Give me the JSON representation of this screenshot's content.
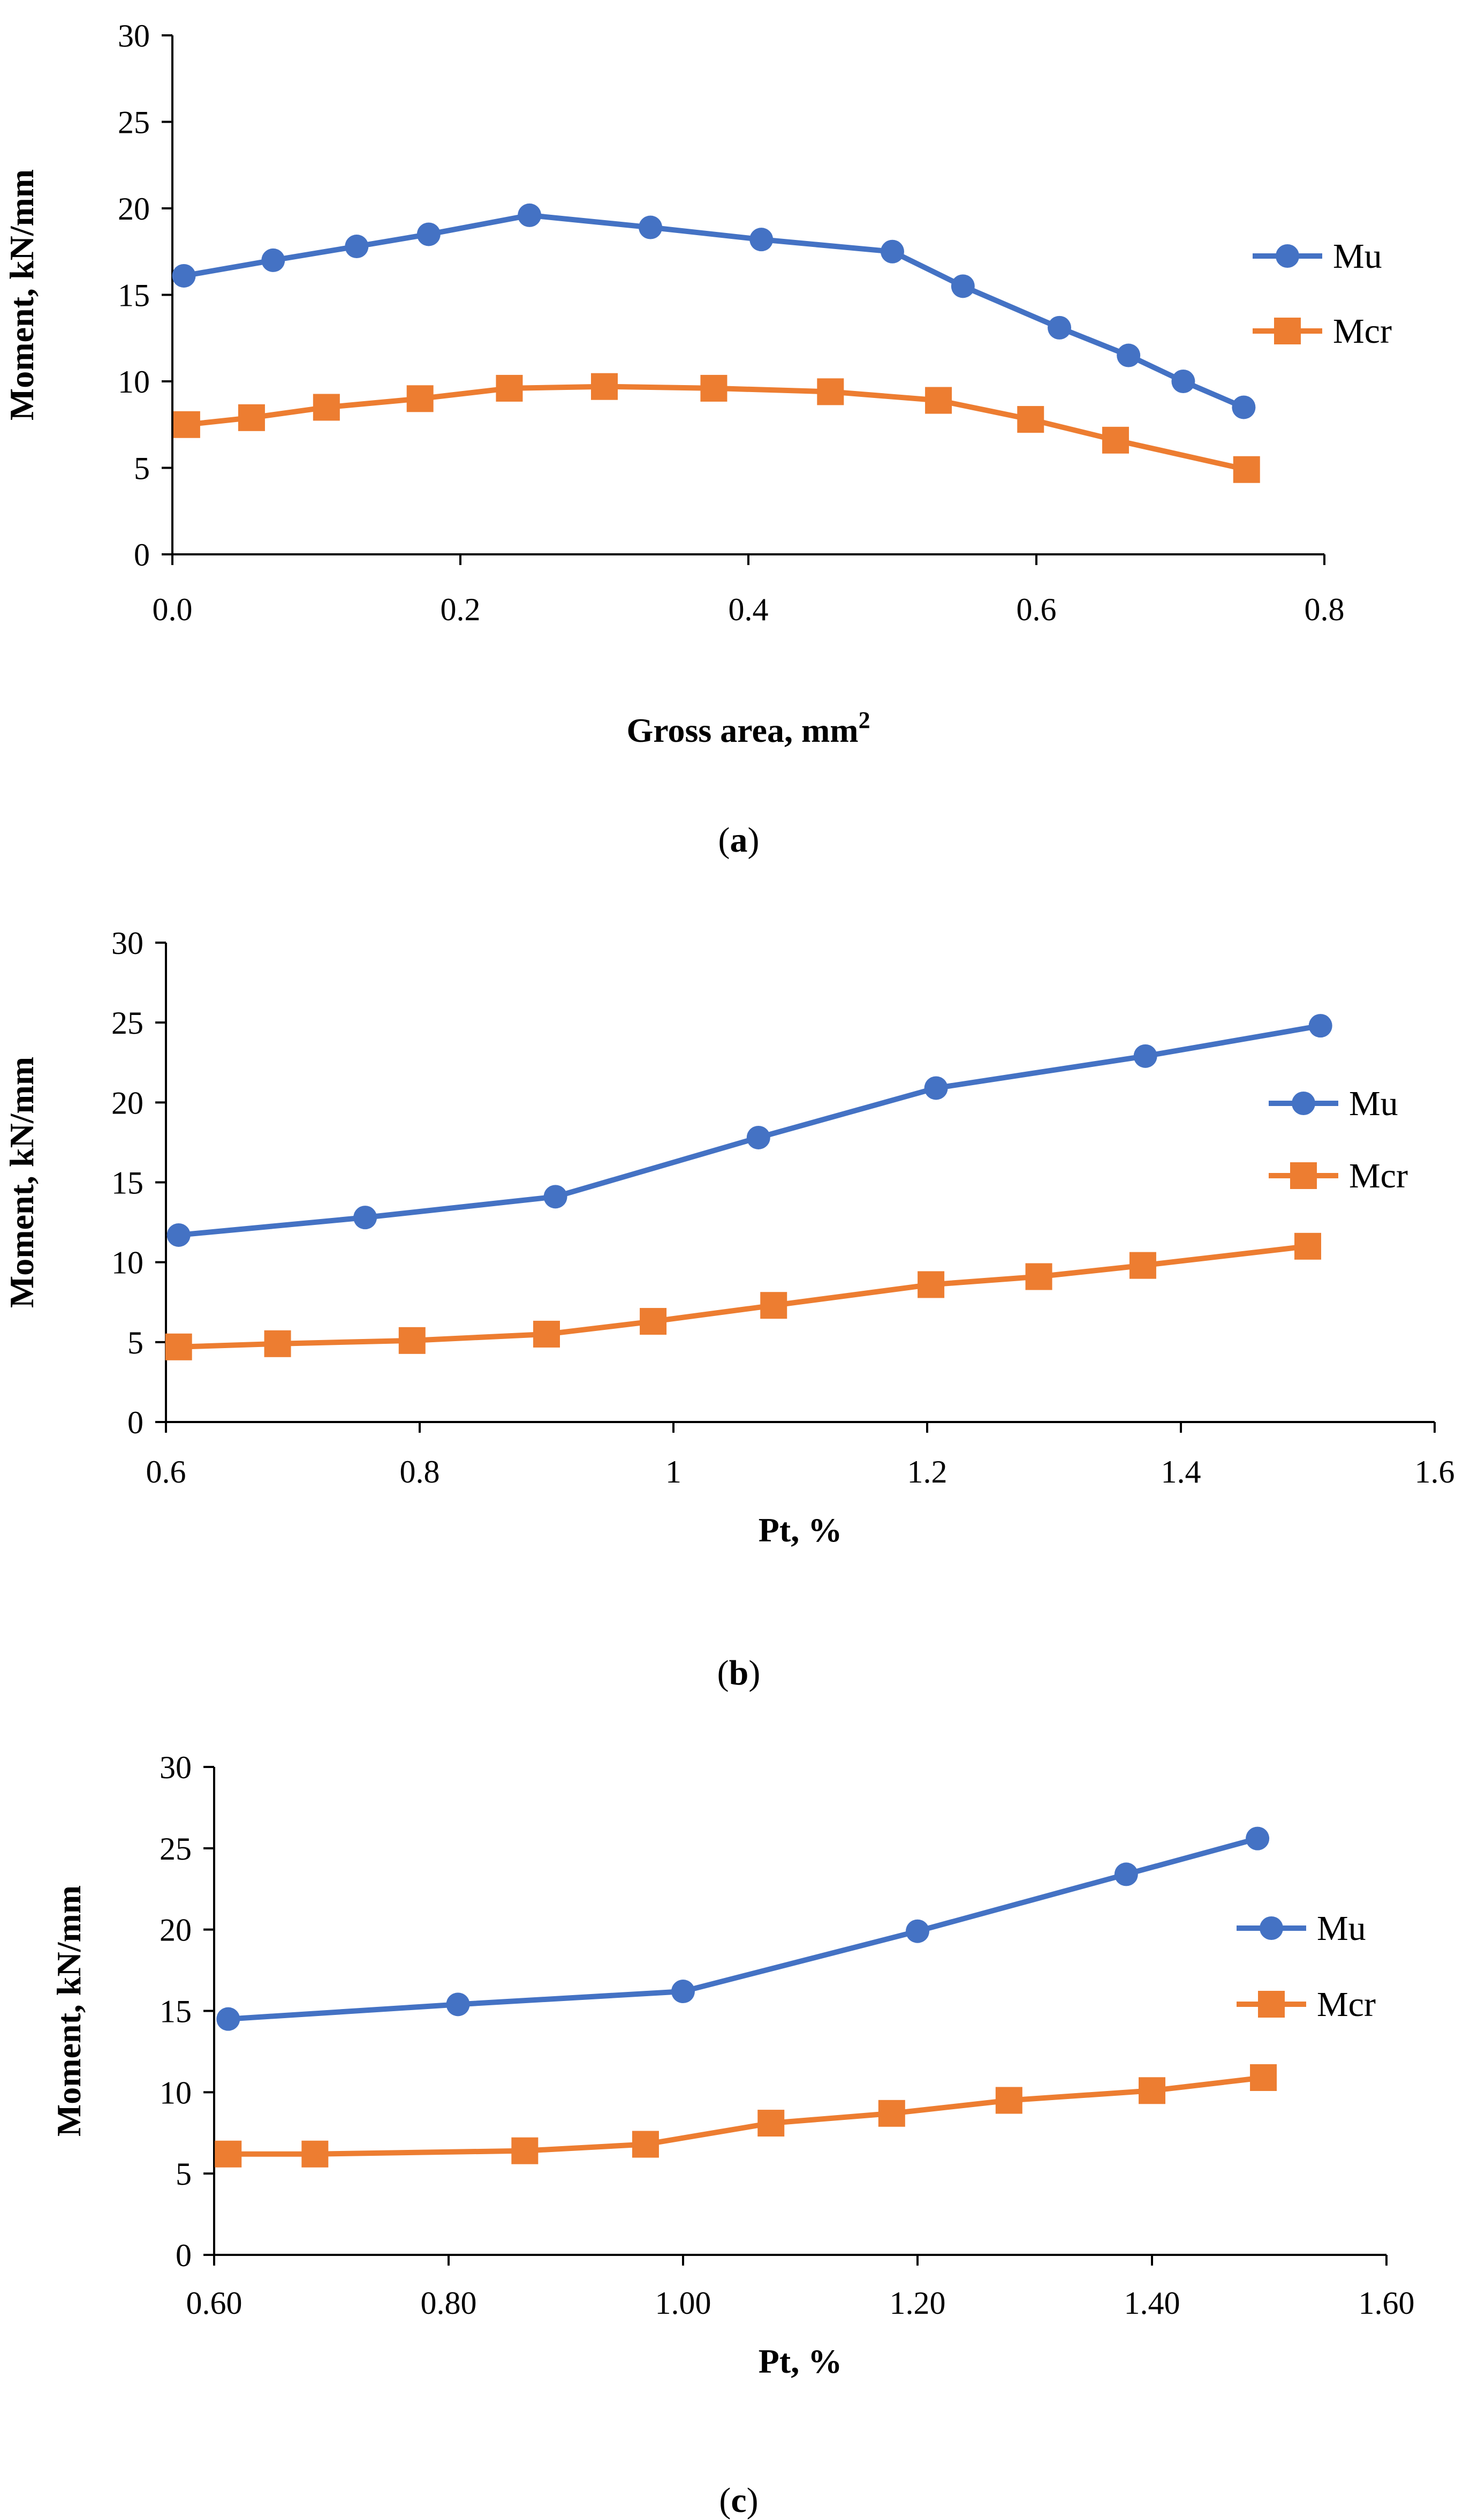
{
  "colors": {
    "mu": "#4472C4",
    "mcr": "#ED7D31",
    "axis": "#000000"
  },
  "chart_data": [
    {
      "type": "line",
      "caption": "a",
      "xlabel": "Gross area, mm",
      "xlabel_superscript": "2",
      "ylabel": "Moment, kN/mm",
      "xlim": [
        0,
        0.8
      ],
      "ylim": [
        0,
        30
      ],
      "xticks": [
        0,
        0.2,
        0.4,
        0.6,
        0.8
      ],
      "xtick_labels": [
        "0.0",
        "0.2",
        "0.4",
        "0.6",
        "0.8"
      ],
      "yticks": [
        0,
        5,
        10,
        15,
        20,
        25,
        30
      ],
      "ytick_labels": [
        "0",
        "5",
        "10",
        "15",
        "20",
        "25",
        "30"
      ],
      "legend_position": "right",
      "series": [
        {
          "name": "Mu",
          "marker": "circle",
          "x": [
            0.008,
            0.07,
            0.128,
            0.178,
            0.248,
            0.332,
            0.409,
            0.5,
            0.549,
            0.616,
            0.664,
            0.702,
            0.744
          ],
          "y": [
            16.1,
            17.0,
            17.8,
            18.5,
            19.6,
            18.9,
            18.2,
            17.5,
            15.5,
            13.1,
            11.5,
            10.0,
            8.5
          ]
        },
        {
          "name": "Mcr",
          "marker": "square",
          "x": [
            0.01,
            0.055,
            0.107,
            0.172,
            0.234,
            0.3,
            0.376,
            0.457,
            0.532,
            0.596,
            0.655,
            0.746
          ],
          "y": [
            7.5,
            7.9,
            8.5,
            9.0,
            9.6,
            9.7,
            9.6,
            9.4,
            8.9,
            7.8,
            6.6,
            4.9
          ]
        }
      ]
    },
    {
      "type": "line",
      "caption": "b",
      "xlabel": "Pt, %",
      "ylabel": "Moment, kN/mm",
      "xlim": [
        0.6,
        1.6
      ],
      "ylim": [
        0,
        30
      ],
      "xticks": [
        0.6,
        0.8,
        1.0,
        1.2,
        1.4,
        1.6
      ],
      "xtick_labels": [
        "0.6",
        "0.8",
        "1",
        "1.2",
        "1.4",
        "1.6"
      ],
      "yticks": [
        0,
        5,
        10,
        15,
        20,
        25,
        30
      ],
      "ytick_labels": [
        "0",
        "5",
        "10",
        "15",
        "20",
        "25",
        "30"
      ],
      "legend_position": "right",
      "series": [
        {
          "name": "Mu",
          "marker": "circle",
          "x": [
            0.61,
            0.757,
            0.907,
            1.067,
            1.207,
            1.372,
            1.51
          ],
          "y": [
            11.7,
            12.8,
            14.1,
            17.8,
            20.9,
            22.9,
            24.8
          ]
        },
        {
          "name": "Mcr",
          "marker": "square",
          "x": [
            0.61,
            0.688,
            0.794,
            0.9,
            0.984,
            1.079,
            1.203,
            1.288,
            1.37,
            1.5
          ],
          "y": [
            4.7,
            4.9,
            5.1,
            5.5,
            6.3,
            7.3,
            8.6,
            9.1,
            9.8,
            11.0
          ]
        }
      ]
    },
    {
      "type": "line",
      "caption": "c",
      "xlabel": "Pt, %",
      "ylabel": "Moment, kN/mm",
      "xlim": [
        0.6,
        1.6
      ],
      "ylim": [
        0,
        30
      ],
      "xticks": [
        0.6,
        0.8,
        1.0,
        1.2,
        1.4,
        1.6
      ],
      "xtick_labels": [
        "0.60",
        "0.80",
        "1.00",
        "1.20",
        "1.40",
        "1.60"
      ],
      "yticks": [
        0,
        5,
        10,
        15,
        20,
        25,
        30
      ],
      "ytick_labels": [
        "0",
        "5",
        "10",
        "15",
        "20",
        "25",
        "30"
      ],
      "legend_position": "right",
      "series": [
        {
          "name": "Mu",
          "marker": "circle",
          "x": [
            0.612,
            0.808,
            1.0,
            1.2,
            1.378,
            1.49
          ],
          "y": [
            14.5,
            15.4,
            16.2,
            19.9,
            23.4,
            25.6
          ]
        },
        {
          "name": "Mcr",
          "marker": "square",
          "x": [
            0.612,
            0.686,
            0.865,
            0.968,
            1.075,
            1.178,
            1.278,
            1.4,
            1.495
          ],
          "y": [
            6.2,
            6.2,
            6.4,
            6.8,
            8.1,
            8.7,
            9.5,
            10.1,
            10.9
          ]
        }
      ]
    }
  ]
}
